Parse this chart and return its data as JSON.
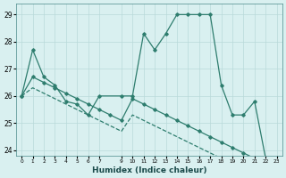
{
  "title": "",
  "xlabel": "Humidex (Indice chaleur)",
  "x": [
    0,
    1,
    2,
    3,
    4,
    5,
    6,
    7,
    9,
    10,
    11,
    12,
    13,
    14,
    15,
    16,
    17,
    18,
    19,
    20,
    21,
    22,
    23
  ],
  "line1": [
    26.0,
    27.7,
    26.7,
    26.4,
    25.8,
    25.7,
    25.3,
    26.0,
    26.0,
    26.0,
    28.3,
    27.7,
    28.3,
    29.0,
    29.0,
    29.0,
    29.0,
    26.4,
    25.3,
    25.3,
    25.8,
    23.7,
    23.6
  ],
  "line2_x": [
    0,
    1,
    2,
    3,
    4,
    5,
    6,
    7,
    8,
    9,
    10,
    11,
    12,
    13,
    14,
    15,
    16,
    17,
    18,
    19,
    20,
    21,
    22,
    23
  ],
  "line2": [
    26.0,
    26.7,
    26.5,
    26.3,
    26.1,
    25.9,
    25.7,
    25.5,
    25.3,
    25.1,
    25.9,
    25.7,
    25.5,
    25.3,
    25.1,
    24.9,
    24.7,
    24.5,
    24.3,
    24.1,
    23.9,
    23.7,
    23.6,
    23.5
  ],
  "line3_x": [
    0,
    1,
    2,
    3,
    4,
    5,
    6,
    7,
    8,
    9,
    10,
    11,
    12,
    13,
    14,
    15,
    16,
    17,
    18,
    19,
    20,
    21,
    22,
    23
  ],
  "line3": [
    26.0,
    26.3,
    26.1,
    25.9,
    25.7,
    25.5,
    25.3,
    25.1,
    24.9,
    24.7,
    25.3,
    25.1,
    24.9,
    24.7,
    24.5,
    24.3,
    24.1,
    23.9,
    23.7,
    23.5,
    23.3,
    23.2,
    23.6,
    23.5
  ],
  "line_color": "#2e7d6e",
  "bg_color": "#d9f0f0",
  "grid_color": "#b8dada",
  "ylim": [
    23.8,
    29.4
  ],
  "yticks": [
    24,
    25,
    26,
    27,
    28,
    29
  ],
  "xticks": [
    0,
    1,
    2,
    3,
    4,
    5,
    6,
    7,
    9,
    10,
    11,
    12,
    13,
    14,
    15,
    16,
    17,
    18,
    19,
    20,
    21,
    22,
    23
  ],
  "xlim": [
    -0.5,
    23.5
  ]
}
